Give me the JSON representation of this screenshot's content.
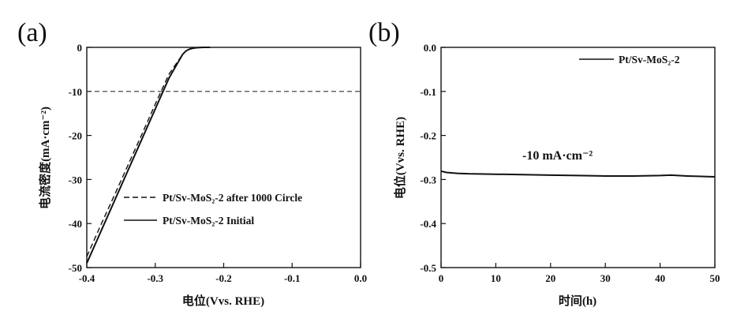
{
  "chart_data": [
    {
      "panel": "(a)",
      "type": "line",
      "xlabel": "电位(Vvs. RHE)",
      "ylabel": "电流密度(mA·cm⁻²)",
      "xlim": [
        -0.4,
        0.0
      ],
      "ylim": [
        -50,
        0
      ],
      "xticks": [
        "-0.4",
        "-0.3",
        "-0.2",
        "-0.1",
        "0.0"
      ],
      "yticks": [
        "-50",
        "-40",
        "-30",
        "-20",
        "-10",
        "0"
      ],
      "legend_position": "lower-right",
      "reference_line": {
        "y": -10,
        "style": "dashed"
      },
      "series": [
        {
          "name": "Pt/Sv-MoS₂-2 after 1000 Circle",
          "style": "dashed",
          "x": [
            -0.4,
            -0.38,
            -0.36,
            -0.34,
            -0.32,
            -0.3,
            -0.28,
            -0.26,
            -0.255,
            -0.25,
            -0.245,
            -0.24,
            -0.23,
            -0.22
          ],
          "y": [
            -47.5,
            -40.5,
            -33.7,
            -26.8,
            -19.9,
            -12.9,
            -6.1,
            -1.6,
            -0.8,
            -0.4,
            -0.2,
            -0.1,
            0,
            0
          ]
        },
        {
          "name": "Pt/Sv-MoS₂-2 Initial",
          "style": "solid",
          "x": [
            -0.4,
            -0.38,
            -0.36,
            -0.34,
            -0.32,
            -0.3,
            -0.28,
            -0.26,
            -0.255,
            -0.25,
            -0.245,
            -0.24,
            -0.23,
            -0.22
          ],
          "y": [
            -49,
            -42,
            -35,
            -28,
            -21,
            -14,
            -7,
            -1.6,
            -0.8,
            -0.4,
            -0.2,
            -0.1,
            0,
            0
          ]
        }
      ]
    },
    {
      "panel": "(b)",
      "type": "line",
      "xlabel": "时间(h)",
      "ylabel": "电位(Vvs. RHE)",
      "xlim": [
        0,
        50
      ],
      "ylim": [
        -0.5,
        0.0
      ],
      "xticks": [
        "0",
        "10",
        "20",
        "30",
        "40",
        "50"
      ],
      "yticks": [
        "-0.5",
        "-0.4",
        "-0.3",
        "-0.2",
        "-0.1",
        "0.0"
      ],
      "legend_position": "top-right",
      "annotation": "-10 mA·cm⁻²",
      "series": [
        {
          "name": "Pt/Sv-MoS₂-2",
          "style": "solid",
          "x": [
            0,
            1,
            3,
            5,
            10,
            15,
            20,
            25,
            30,
            35,
            40,
            42,
            45,
            50
          ],
          "y": [
            -0.281,
            -0.284,
            -0.286,
            -0.287,
            -0.288,
            -0.289,
            -0.29,
            -0.291,
            -0.292,
            -0.292,
            -0.291,
            -0.29,
            -0.292,
            -0.294
          ]
        }
      ]
    }
  ]
}
